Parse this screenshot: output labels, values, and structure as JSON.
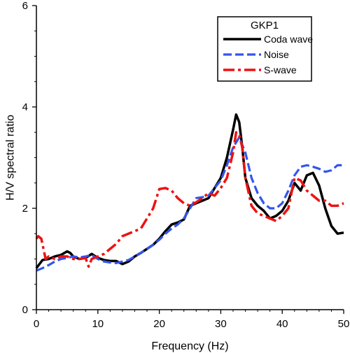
{
  "chart_data": {
    "type": "line",
    "xlabel": "Frequency (Hz)",
    "ylabel": "H/V spectral ratio",
    "xlim": [
      0,
      50
    ],
    "ylim": [
      0,
      6
    ],
    "xticks": [
      0,
      10,
      20,
      30,
      40,
      50
    ],
    "yticks": [
      0,
      2,
      4,
      6
    ],
    "grid": false,
    "legend": {
      "title": "GKP1",
      "placement": "top-right"
    },
    "series": [
      {
        "name": "Coda wave",
        "color": "#000000",
        "dash": "solid",
        "x": [
          0,
          0.5,
          1,
          2,
          3,
          4,
          5,
          5.5,
          6,
          7,
          8,
          9,
          10,
          11,
          12,
          13,
          14,
          15,
          16,
          17,
          18,
          19,
          20,
          21,
          22,
          23,
          24,
          25,
          26,
          27,
          28,
          29,
          30,
          31,
          32,
          32.5,
          33,
          33.5,
          34,
          35,
          36,
          37,
          38,
          39,
          40,
          41,
          42,
          43,
          44,
          45,
          46,
          47,
          48,
          49,
          50
        ],
        "y": [
          0.82,
          0.9,
          0.98,
          1.0,
          1.05,
          1.08,
          1.15,
          1.12,
          1.05,
          1.0,
          1.02,
          1.1,
          1.02,
          0.98,
          0.96,
          0.96,
          0.9,
          0.95,
          1.05,
          1.12,
          1.2,
          1.28,
          1.4,
          1.55,
          1.68,
          1.72,
          1.78,
          2.05,
          2.1,
          2.15,
          2.2,
          2.4,
          2.6,
          3.0,
          3.55,
          3.85,
          3.7,
          3.2,
          2.6,
          2.2,
          2.05,
          1.95,
          1.8,
          1.85,
          1.95,
          2.15,
          2.5,
          2.35,
          2.65,
          2.7,
          2.45,
          2.0,
          1.65,
          1.5,
          1.52
        ]
      },
      {
        "name": "Noise",
        "color": "#3355ee",
        "dash": "dash",
        "x": [
          0,
          1,
          2,
          3,
          4,
          5,
          6,
          7,
          8,
          9,
          10,
          11,
          12,
          13,
          14,
          15,
          16,
          17,
          18,
          19,
          20,
          21,
          22,
          23,
          24,
          25,
          26,
          27,
          28,
          29,
          30,
          31,
          32,
          33,
          34,
          35,
          36,
          37,
          38,
          39,
          40,
          41,
          42,
          43,
          44,
          45,
          46,
          47,
          48,
          49,
          50
        ],
        "y": [
          0.77,
          0.82,
          0.88,
          0.95,
          1.0,
          1.02,
          1.05,
          1.03,
          1.05,
          1.08,
          1.0,
          0.95,
          0.93,
          0.92,
          0.95,
          0.98,
          1.05,
          1.12,
          1.2,
          1.28,
          1.38,
          1.5,
          1.6,
          1.68,
          1.8,
          2.0,
          2.2,
          2.22,
          2.25,
          2.4,
          2.55,
          2.85,
          3.2,
          3.4,
          3.1,
          2.6,
          2.3,
          2.1,
          2.0,
          2.0,
          2.1,
          2.35,
          2.65,
          2.82,
          2.85,
          2.82,
          2.78,
          2.72,
          2.75,
          2.85,
          2.85
        ]
      },
      {
        "name": "S-wave",
        "color": "#ee1111",
        "dash": "dashdot",
        "x": [
          0,
          0.3,
          0.8,
          1.5,
          2,
          3,
          4,
          5,
          6,
          7,
          8,
          8.5,
          9,
          10,
          11,
          12,
          13,
          14,
          15,
          16,
          17,
          18,
          19,
          20,
          21,
          22,
          23,
          24,
          25,
          26,
          27,
          28,
          29,
          30,
          31,
          32,
          32.5,
          33,
          33.5,
          34,
          35,
          36,
          37,
          38,
          39,
          40,
          41,
          42,
          43,
          44,
          45,
          46,
          47,
          48,
          49,
          50
        ],
        "y": [
          1.4,
          1.45,
          1.4,
          1.0,
          1.05,
          1.0,
          1.05,
          1.05,
          1.0,
          1.0,
          1.02,
          0.85,
          1.0,
          1.05,
          1.1,
          1.2,
          1.3,
          1.45,
          1.5,
          1.55,
          1.6,
          1.8,
          2.0,
          2.38,
          2.4,
          2.35,
          2.2,
          2.1,
          2.05,
          2.12,
          2.2,
          2.3,
          2.25,
          2.4,
          2.6,
          3.1,
          3.5,
          3.45,
          3.2,
          2.6,
          2.05,
          1.9,
          1.85,
          1.8,
          1.75,
          1.85,
          2.0,
          2.6,
          2.55,
          2.35,
          2.25,
          2.15,
          2.15,
          2.05,
          2.05,
          2.1
        ]
      }
    ]
  }
}
